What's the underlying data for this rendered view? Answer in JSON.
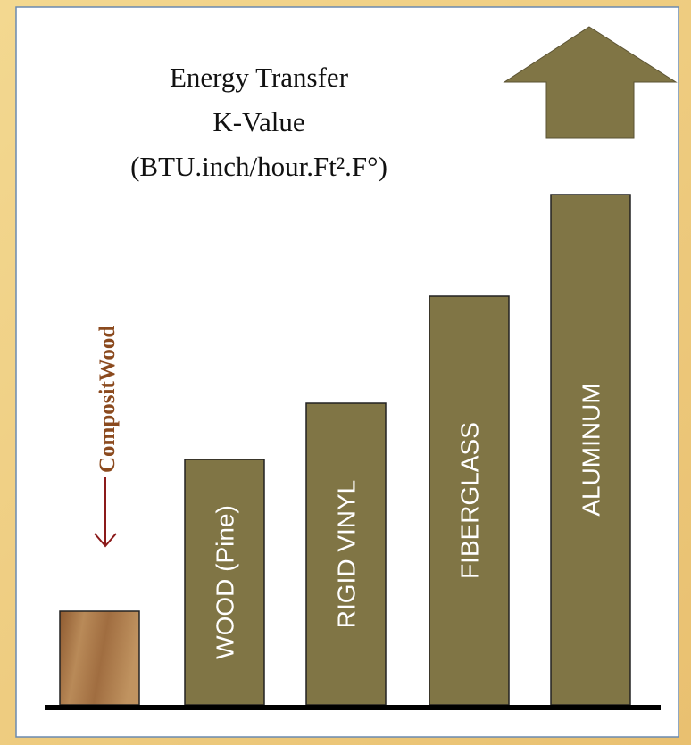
{
  "chart_data": {
    "type": "bar",
    "title": [
      "Energy Transfer",
      "K-Value",
      "(BTU.inch/hour.Ft².F°)"
    ],
    "categories": [
      null,
      "WOOD (Pine)",
      "RIGID VINYL",
      "FIBERGLASS",
      "ALUMINUM"
    ],
    "values": [
      105,
      275,
      338,
      458,
      572
    ],
    "colors": [
      "#a8774a",
      "#807545",
      "#807545",
      "#807545",
      "#807545"
    ],
    "annotation": "CompositWood"
  }
}
